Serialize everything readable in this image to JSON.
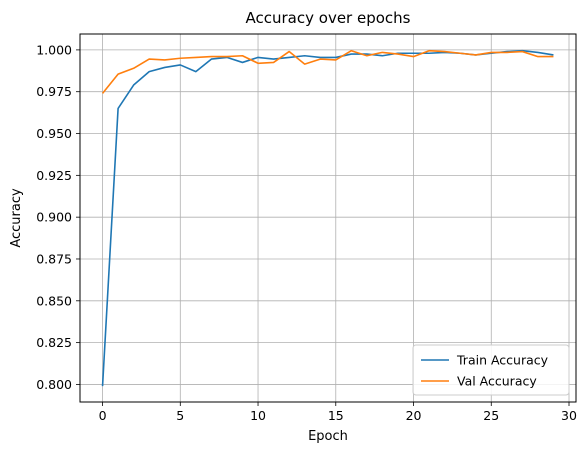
{
  "chart_data": {
    "type": "line",
    "title": "Accuracy over epochs",
    "xlabel": "Epoch",
    "ylabel": "Accuracy",
    "xlim": [
      -1.45,
      30.45
    ],
    "ylim": [
      0.7895,
      1.0095
    ],
    "xticks": [
      0,
      5,
      10,
      15,
      20,
      25,
      30
    ],
    "yticks": [
      0.8,
      0.825,
      0.85,
      0.875,
      0.9,
      0.925,
      0.95,
      0.975,
      1.0
    ],
    "ytick_labels": [
      "0.800",
      "0.825",
      "0.850",
      "0.875",
      "0.900",
      "0.925",
      "0.950",
      "0.975",
      "1.000"
    ],
    "grid": true,
    "legend_position": "lower-right",
    "x": [
      0,
      1,
      2,
      3,
      4,
      5,
      6,
      7,
      8,
      9,
      10,
      11,
      12,
      13,
      14,
      15,
      16,
      17,
      18,
      19,
      20,
      21,
      22,
      23,
      24,
      25,
      26,
      27,
      28,
      29
    ],
    "series": [
      {
        "name": "Train Accuracy",
        "color": "#1f77b4",
        "values": [
          0.799,
          0.965,
          0.979,
          0.987,
          0.9895,
          0.991,
          0.987,
          0.9945,
          0.9955,
          0.9925,
          0.9955,
          0.9945,
          0.9955,
          0.9965,
          0.9955,
          0.9955,
          0.9975,
          0.9975,
          0.9965,
          0.998,
          0.998,
          0.998,
          0.9985,
          0.998,
          0.997,
          0.998,
          0.999,
          0.9995,
          0.9985,
          0.997
        ]
      },
      {
        "name": "Val Accuracy",
        "color": "#ff7f0e",
        "values": [
          0.974,
          0.9855,
          0.989,
          0.9945,
          0.994,
          0.995,
          0.9955,
          0.996,
          0.996,
          0.9965,
          0.992,
          0.9925,
          0.999,
          0.9915,
          0.9945,
          0.994,
          0.9995,
          0.9965,
          0.9985,
          0.9975,
          0.996,
          0.9995,
          0.999,
          0.998,
          0.997,
          0.9985,
          0.9985,
          0.999,
          0.996,
          0.996
        ]
      }
    ]
  }
}
